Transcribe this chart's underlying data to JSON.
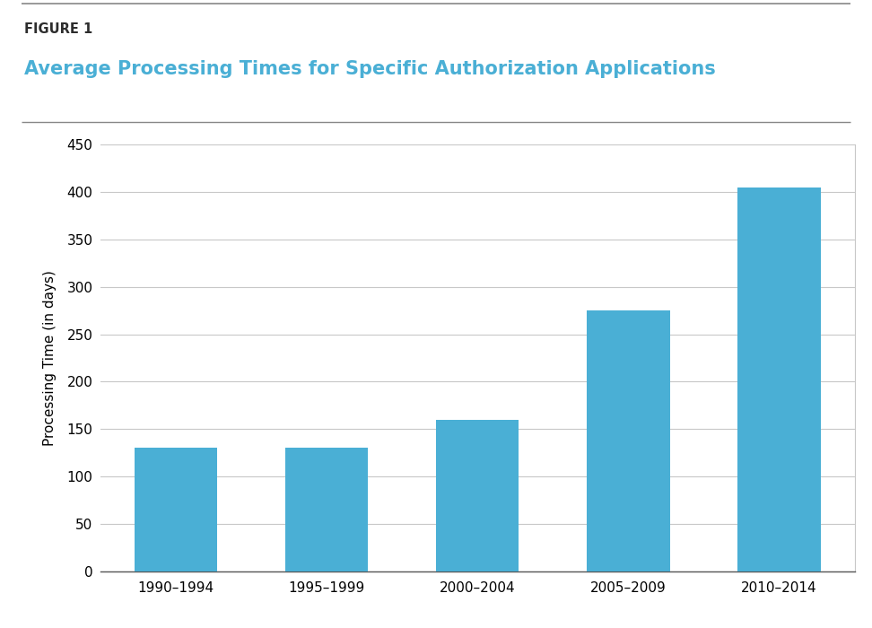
{
  "categories": [
    "1990–1994",
    "1995–1999",
    "2000–2004",
    "2005–2009",
    "2010–2014"
  ],
  "values": [
    130,
    130,
    160,
    275,
    405
  ],
  "bar_color": "#4aafd5",
  "ylabel": "Processing Time (in days)",
  "ylim": [
    0,
    450
  ],
  "yticks": [
    0,
    50,
    100,
    150,
    200,
    250,
    300,
    350,
    400,
    450
  ],
  "figure_label": "FIGURE 1",
  "title": "Average Processing Times for Specific Authorization Applications",
  "figure_label_color": "#2d2d2d",
  "title_color": "#4aafd5",
  "background_color": "#ffffff",
  "figure_label_fontsize": 10.5,
  "title_fontsize": 15,
  "ylabel_fontsize": 11,
  "tick_fontsize": 11,
  "bar_width": 0.55,
  "grid_color": "#c8c8c8",
  "line_color": "#888888"
}
